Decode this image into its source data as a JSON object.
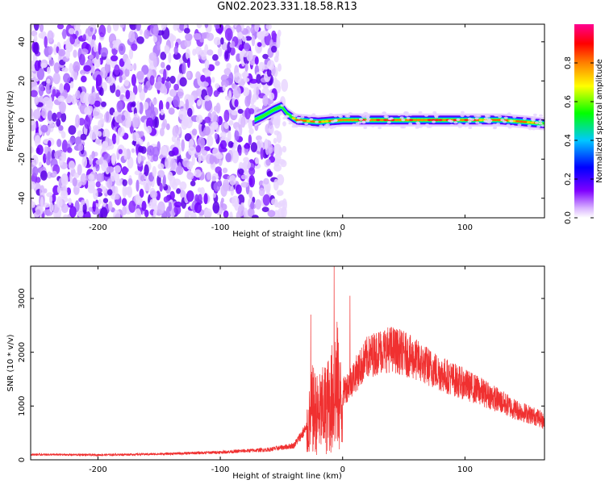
{
  "title": "GN02.2023.331.18.58.R13",
  "chart_data": [
    {
      "type": "heatmap",
      "title": "GN02.2023.331.18.58.R13",
      "xlabel": "Height of straight line (km)",
      "ylabel": "Frequency (Hz)",
      "xlim": [
        -255,
        165
      ],
      "ylim": [
        -50,
        49
      ],
      "xticks": [
        "-200",
        "-100",
        "0",
        "100"
      ],
      "yticks": [
        "-40",
        "-20",
        "0",
        "20",
        "40"
      ],
      "colorbar": {
        "label": "Normalized spectral amplitude",
        "range": [
          0,
          1
        ],
        "ticks": [
          "0.0",
          "0.2",
          "0.4",
          "0.6",
          "0.8"
        ],
        "colormap": [
          "#ffffff",
          "#7f00ff",
          "#0000ff",
          "#00c8ff",
          "#00ff00",
          "#ffff00",
          "#ff8000",
          "#ff0000",
          "#ff0090"
        ]
      },
      "noise_region_km": [
        -255,
        -55
      ],
      "ridge": {
        "description_points_km_hz": [
          [
            -72,
            0
          ],
          [
            -65,
            2
          ],
          [
            -57,
            5
          ],
          [
            -50,
            7
          ],
          [
            -45,
            3
          ],
          [
            -38,
            0
          ],
          [
            -20,
            -1
          ],
          [
            0,
            0
          ],
          [
            50,
            0
          ],
          [
            100,
            0
          ],
          [
            130,
            0
          ],
          [
            150,
            -1
          ],
          [
            165,
            -2
          ]
        ]
      }
    },
    {
      "type": "line",
      "xlabel": "Height of straight line (km)",
      "ylabel": "SNR (10 * v/v)",
      "xlim": [
        -255,
        165
      ],
      "ylim": [
        0,
        3600
      ],
      "xticks": [
        "-200",
        "-100",
        "0",
        "100"
      ],
      "yticks": [
        "0",
        "1000",
        "2000",
        "3000"
      ],
      "color": "#f03030",
      "envelope_points_km_snr": [
        [
          -255,
          120
        ],
        [
          -200,
          110
        ],
        [
          -150,
          130
        ],
        [
          -100,
          170
        ],
        [
          -60,
          230
        ],
        [
          -40,
          320
        ],
        [
          -30,
          700
        ],
        [
          -25,
          1700
        ],
        [
          -20,
          1500
        ],
        [
          -10,
          1900
        ],
        [
          -5,
          2600
        ],
        [
          0,
          1500
        ],
        [
          10,
          1900
        ],
        [
          20,
          2300
        ],
        [
          30,
          2450
        ],
        [
          40,
          2500
        ],
        [
          50,
          2400
        ],
        [
          60,
          2250
        ],
        [
          80,
          1950
        ],
        [
          100,
          1700
        ],
        [
          120,
          1450
        ],
        [
          140,
          1150
        ],
        [
          160,
          950
        ],
        [
          165,
          850
        ]
      ],
      "spikes_km_snr": [
        [
          -26,
          2700
        ],
        [
          -7,
          3600
        ],
        [
          6,
          3050
        ]
      ]
    }
  ]
}
